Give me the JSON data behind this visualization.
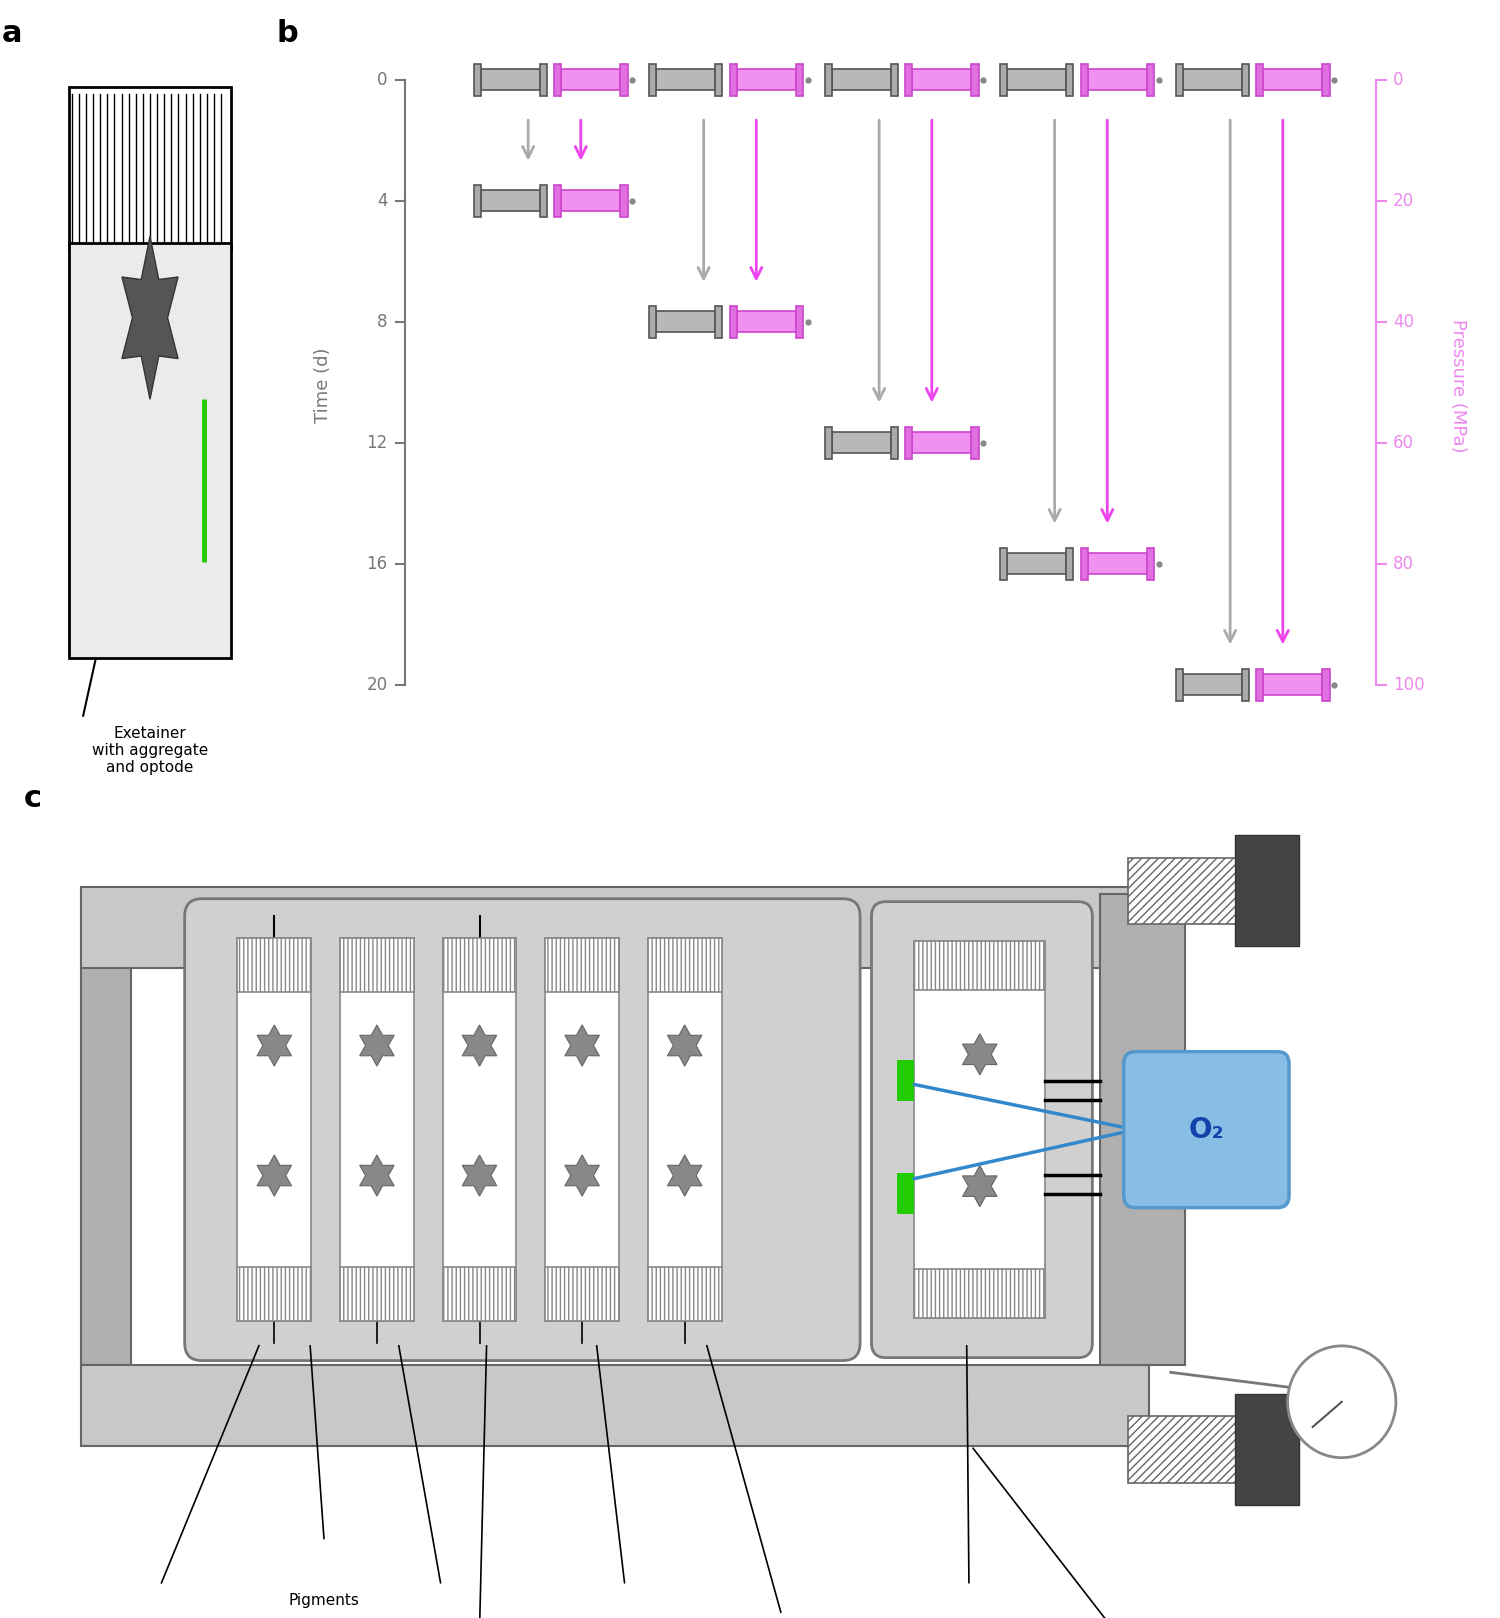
{
  "fig_width": 15.0,
  "fig_height": 16.18,
  "bg_color": "#ffffff",
  "gray_color": "#aaaaaa",
  "dark_gray": "#777777",
  "light_gray": "#cccccc",
  "tank_gray": "#c0c0c0",
  "inner_gray": "#d0d0d0",
  "pink_color": "#ee88ee",
  "pink_arrow": "#ee44ee",
  "green_color": "#22cc00",
  "blue_color": "#3388cc",
  "blue_light": "#88c4e8",
  "exetainer_label": "Exetainer\nwith aggregate\nand optode",
  "panel_a_label": "a",
  "panel_b_label": "b",
  "panel_c_label": "c",
  "time_axis_label": "Time (d)",
  "pressure_axis_label": "Pressure (MPa)",
  "time_ticks": [
    0,
    4,
    8,
    12,
    16,
    20
  ],
  "pressure_ticks": [
    0,
    20,
    40,
    60,
    80,
    100
  ],
  "o2_label": "O₂",
  "gray_tube_fc": "#b8b8b8",
  "gray_flange_fc": "#aaaaaa",
  "pink_tube_fc": "#f090f0",
  "pink_flange_fc": "#e070e0"
}
